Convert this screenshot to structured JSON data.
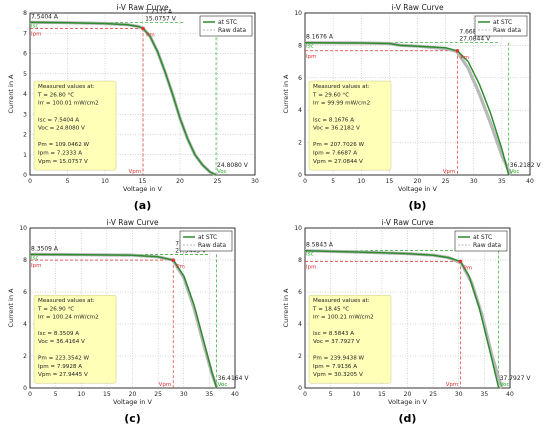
{
  "chart_data": [
    {
      "type": "line",
      "panel_label": "(a)",
      "title": "i-V Raw Curve",
      "xlabel": "Voltage in V",
      "ylabel": "Current in A",
      "xlim": [
        0,
        30
      ],
      "ylim": [
        0,
        8
      ],
      "xticks": [
        0,
        5,
        10,
        15,
        20,
        25,
        30
      ],
      "yticks": [
        0,
        1,
        2,
        3,
        4,
        5,
        6,
        7,
        8
      ],
      "grid": true,
      "legend": {
        "position": "top-right",
        "entries": [
          "at STC",
          "Raw data"
        ]
      },
      "colors": {
        "stc": "#2e8b2e",
        "raw": "#b8b8b8",
        "green_marker": "#22aa22",
        "red_marker": "#e03030"
      },
      "series": [
        {
          "name": "at STC",
          "x": [
            0,
            5,
            10,
            13,
            14.5,
            15.0757,
            16,
            17,
            18,
            19,
            20,
            21,
            22,
            23,
            24,
            24.808
          ],
          "y": [
            7.5404,
            7.52,
            7.48,
            7.42,
            7.33,
            7.2333,
            6.85,
            6.1,
            5.1,
            4.0,
            2.8,
            1.8,
            1.0,
            0.5,
            0.15,
            0
          ]
        },
        {
          "name": "Raw data",
          "x": [
            0,
            5,
            10,
            13,
            14.5,
            15.0757,
            16,
            17,
            18,
            19,
            20,
            21,
            22,
            23,
            24,
            24.808
          ],
          "y": [
            7.5404,
            7.52,
            7.48,
            7.42,
            7.33,
            7.2333,
            6.85,
            6.1,
            5.1,
            4.0,
            2.8,
            1.8,
            1.0,
            0.5,
            0.15,
            0
          ]
        }
      ],
      "key_points": {
        "isc_label": "7.5404 A",
        "isc": 7.5404,
        "ipm_label": "7.2333 A",
        "vpm_label": "15.0757 V",
        "vpm": 15.0757,
        "ipm": 7.2333,
        "voc_label": "24.8080 V",
        "voc": 24.808,
        "marker_isc": "Isc",
        "marker_ipm": "Ipm",
        "marker_pm": "Pm",
        "marker_vpm": "Vpm",
        "marker_voc": "Voc"
      },
      "info_box": [
        "Measured values at:",
        "T = 26.80 °C",
        "Irr = 100.01 mW/cm2",
        "",
        "Isc = 7.5404 A",
        "Voc = 24.8080 V",
        "",
        "Pm = 109.0462 W",
        "Ipm = 7.2333 A",
        "Vpm = 15.0757 V"
      ]
    },
    {
      "type": "line",
      "panel_label": "(b)",
      "title": "i-V Raw Curve",
      "xlabel": "Voltage in V",
      "ylabel": "Current in A",
      "xlim": [
        0,
        40
      ],
      "ylim": [
        0,
        10
      ],
      "xticks": [
        0,
        5,
        10,
        15,
        20,
        25,
        30,
        35,
        40
      ],
      "yticks": [
        0,
        2,
        4,
        6,
        8,
        10
      ],
      "grid": true,
      "legend": {
        "position": "top-right",
        "entries": [
          "at STC",
          "Raw data"
        ]
      },
      "colors": {
        "stc": "#2e8b2e",
        "raw": "#b8b8b8",
        "green_marker": "#22aa22",
        "red_marker": "#e03030"
      },
      "series": [
        {
          "name": "at STC",
          "x": [
            0,
            10,
            15,
            17,
            20,
            25,
            27.0844,
            29,
            31,
            33,
            35,
            36.2182
          ],
          "y": [
            8.1676,
            8.15,
            8.12,
            8.0,
            7.95,
            7.85,
            7.6687,
            7.0,
            5.6,
            3.8,
            1.6,
            0
          ]
        },
        {
          "name": "Raw data",
          "x": [
            0,
            10,
            15,
            17,
            20,
            25,
            27.0,
            29,
            31,
            33,
            35,
            36.6
          ],
          "y": [
            8.1676,
            8.15,
            8.12,
            8.0,
            7.95,
            7.8,
            7.62,
            6.6,
            5.0,
            3.2,
            1.2,
            0
          ]
        }
      ],
      "key_points": {
        "isc_label": "8.1676 A",
        "isc": 8.1676,
        "ipm_label": "7.6687 A",
        "vpm_label": "27.0844 V",
        "vpm": 27.0844,
        "ipm": 7.6687,
        "voc_label": "36.2182 V",
        "voc": 36.2182,
        "marker_isc": "Isc",
        "marker_ipm": "Ipm",
        "marker_pm": "Pm",
        "marker_vpm": "Vpm",
        "marker_voc": "Voc"
      },
      "info_box": [
        "Measured values at:",
        "T = 29.60 °C",
        "Irr = 99.99 mW/cm2",
        "",
        "Isc = 8.1676 A",
        "Voc = 36.2182 V",
        "",
        "Pm = 207.7026 W",
        "Ipm = 7.6687 A",
        "Vpm = 27.0844 V"
      ]
    },
    {
      "type": "line",
      "panel_label": "(c)",
      "title": "i-V Raw Curve",
      "xlabel": "Voltage in V",
      "ylabel": "Current in A",
      "xlim": [
        0,
        40
      ],
      "ylim": [
        0,
        10
      ],
      "xticks": [
        0,
        5,
        10,
        15,
        20,
        25,
        30,
        35,
        40
      ],
      "yticks": [
        0,
        2,
        4,
        6,
        8,
        10
      ],
      "grid": true,
      "legend": {
        "position": "top-right",
        "entries": [
          "at STC",
          "Raw data"
        ]
      },
      "colors": {
        "stc": "#2e8b2e",
        "raw": "#b8b8b8",
        "green_marker": "#22aa22",
        "red_marker": "#e03030"
      },
      "series": [
        {
          "name": "at STC",
          "x": [
            0,
            10,
            20,
            25,
            27.9445,
            30,
            32,
            34,
            35.5,
            36.4164
          ],
          "y": [
            8.3509,
            8.33,
            8.3,
            8.2,
            7.9928,
            7.0,
            5.2,
            2.8,
            1.0,
            0
          ]
        },
        {
          "name": "Raw data",
          "x": [
            0,
            10,
            20,
            25,
            27.9,
            30,
            32,
            34,
            35.5,
            36.5
          ],
          "y": [
            8.3509,
            8.33,
            8.3,
            8.2,
            7.98,
            6.9,
            5.0,
            2.6,
            0.9,
            0
          ]
        }
      ],
      "key_points": {
        "isc_label": "8.3509 A",
        "isc": 8.3509,
        "ipm_label": "7.9928 A",
        "vpm_label": "27.9445 V",
        "vpm": 27.9445,
        "ipm": 7.9928,
        "voc_label": "36.4164 V",
        "voc": 36.4164,
        "marker_isc": "Isc",
        "marker_ipm": "Ipm",
        "marker_pm": "Pm",
        "marker_vpm": "Vpm",
        "marker_voc": "Voc"
      },
      "info_box": [
        "Measured values at:",
        "T = 26.90 °C",
        "Irr = 100.24 mW/cm2",
        "",
        "Isc = 8.3509 A",
        "Voc = 36.4164 V",
        "",
        "Pm = 223.3542 W",
        "Ipm = 7.9928 A",
        "Vpm = 27.9445 V"
      ]
    },
    {
      "type": "line",
      "panel_label": "(d)",
      "title": "i-V Raw Curve",
      "xlabel": "Voltage in V",
      "ylabel": "Current in A",
      "xlim": [
        0,
        40
      ],
      "ylim": [
        0,
        10
      ],
      "xticks": [
        0,
        5,
        10,
        15,
        20,
        25,
        30,
        35,
        40
      ],
      "yticks": [
        0,
        2,
        4,
        6,
        8,
        10
      ],
      "grid": true,
      "legend": {
        "position": "top-right",
        "entries": [
          "at STC",
          "Raw data"
        ]
      },
      "colors": {
        "stc": "#2e8b2e",
        "raw": "#b8b8b8",
        "green_marker": "#22aa22",
        "red_marker": "#e03030"
      },
      "series": [
        {
          "name": "at STC",
          "x": [
            0,
            10,
            20,
            25,
            28,
            30.3205,
            32,
            34,
            36,
            37.7927
          ],
          "y": [
            8.5843,
            8.5,
            8.4,
            8.3,
            8.15,
            7.9136,
            7.0,
            5.0,
            2.4,
            0
          ]
        },
        {
          "name": "Raw data",
          "x": [
            0,
            10,
            20,
            25,
            28,
            30.5,
            32.5,
            34.5,
            36.5,
            38.4
          ],
          "y": [
            8.5843,
            8.5,
            8.4,
            8.3,
            8.15,
            7.8,
            6.6,
            4.6,
            2.0,
            0
          ]
        }
      ],
      "key_points": {
        "isc_label": "8.5843 A",
        "isc": 8.5843,
        "ipm_label": "7.9136 A",
        "vpm_label": "30.3205 V",
        "vpm": 30.3205,
        "ipm": 7.9136,
        "voc_label": "37.7927 V",
        "voc": 37.7927,
        "marker_isc": "Isc",
        "marker_ipm": "Ipm",
        "marker_pm": "Pm",
        "marker_vpm": "Vpm",
        "marker_voc": "Voc"
      },
      "info_box": [
        "Measured values at:",
        "T = 18.45 °C",
        "Irr = 100.21 mW/cm2",
        "",
        "Isc = 8.5843 A",
        "Voc = 37.7927 V",
        "",
        "Pm = 239.9438 W",
        "Ipm = 7.9136 A",
        "Vpm = 30.3205 V"
      ]
    }
  ]
}
